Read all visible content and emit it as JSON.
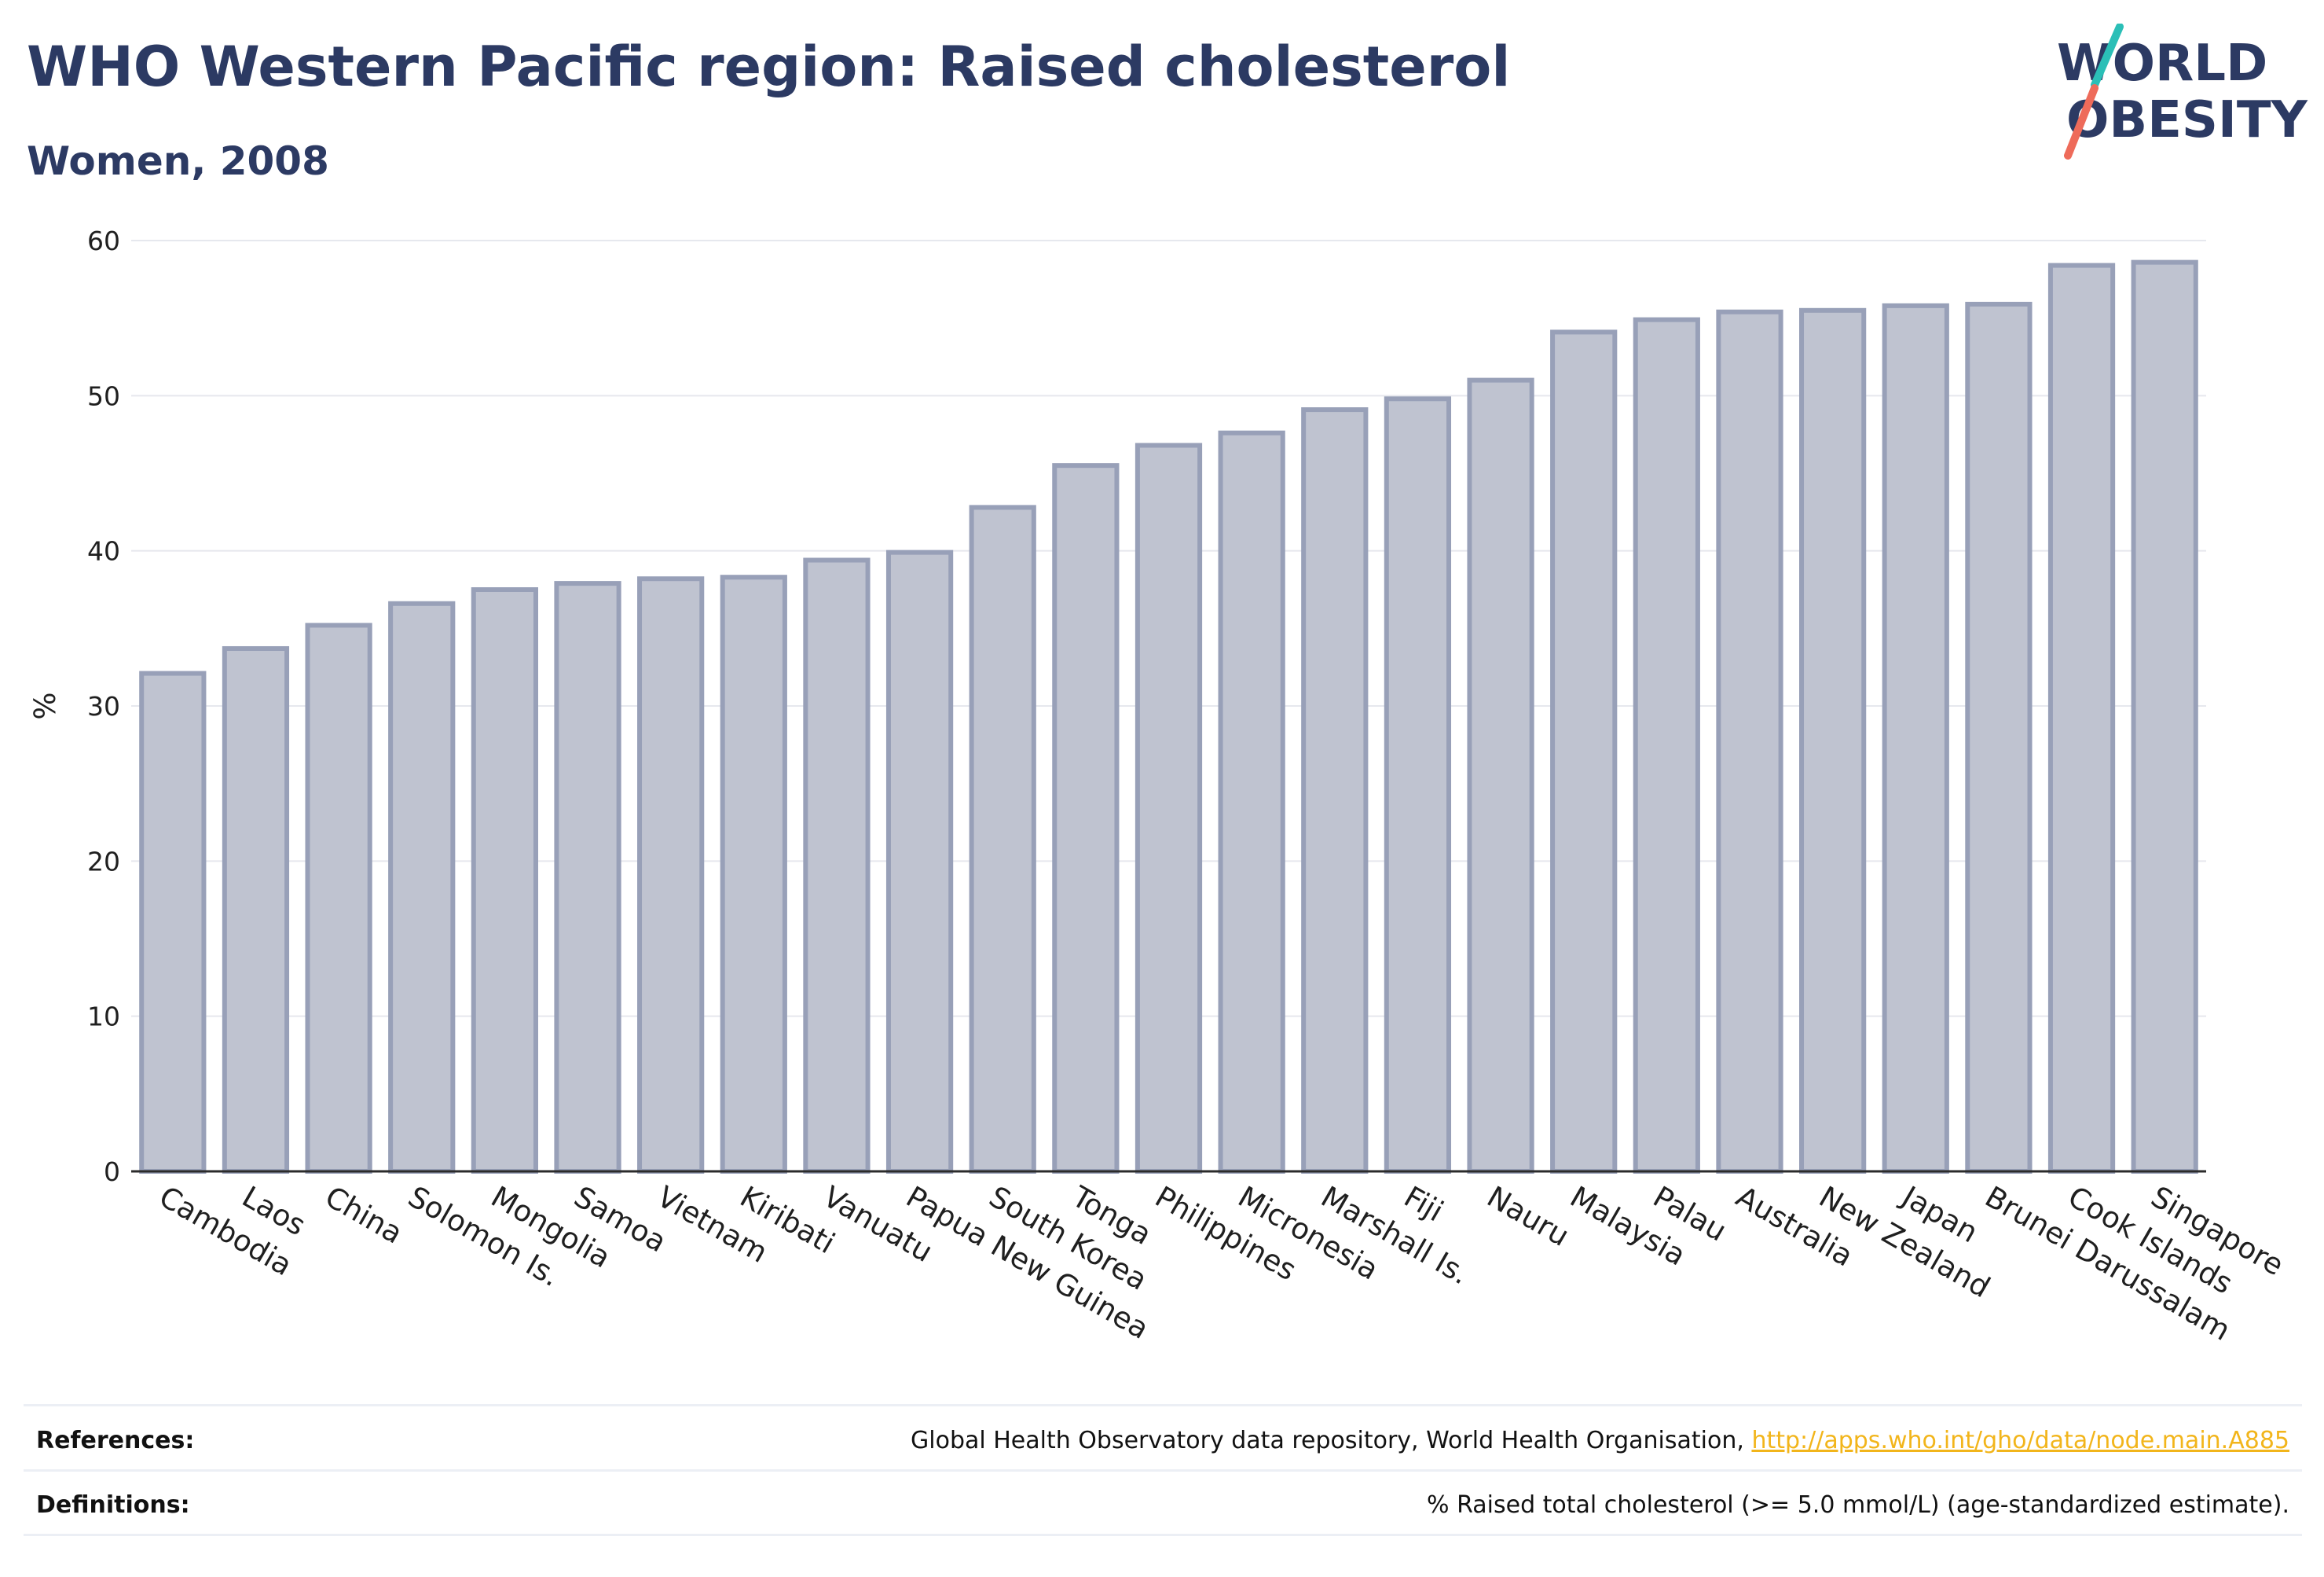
{
  "header": {
    "title": "WHO Western Pacific region: Raised cholesterol",
    "subtitle": "Women, 2008"
  },
  "logo": {
    "line1": "WORLD",
    "line2": "OBESITY"
  },
  "colors": {
    "title": "#2c3a63",
    "bar_fill": "#bfc3d0",
    "bar_stroke": "#98a0b8",
    "grid": "#e6e8ee",
    "logo_teal": "#2bbfb7",
    "logo_coral": "#ee6b5a",
    "link": "#f2b51b"
  },
  "chart_data": {
    "type": "bar",
    "title": "WHO Western Pacific region: Raised cholesterol",
    "subtitle": "Women, 2008",
    "xlabel": "",
    "ylabel": "%",
    "ylim": [
      0,
      60
    ],
    "yticks": [
      0,
      10,
      20,
      30,
      40,
      50,
      60
    ],
    "grid": true,
    "categories": [
      "Cambodia",
      "Laos",
      "China",
      "Solomon Is.",
      "Mongolia",
      "Samoa",
      "Vietnam",
      "Kiribati",
      "Vanuatu",
      "Papua New Guinea",
      "South Korea",
      "Tonga",
      "Philippines",
      "Micronesia",
      "Marshall Is.",
      "Fiji",
      "Nauru",
      "Malaysia",
      "Palau",
      "Australia",
      "New Zealand",
      "Japan",
      "Brunei Darussalam",
      "Cook Islands",
      "Singapore"
    ],
    "values": [
      32.1,
      33.7,
      35.2,
      36.6,
      37.5,
      37.9,
      38.2,
      38.3,
      39.4,
      39.9,
      42.8,
      45.5,
      46.8,
      47.6,
      49.1,
      49.8,
      51.0,
      54.1,
      54.9,
      55.4,
      55.5,
      55.8,
      55.9,
      58.4,
      58.6
    ]
  },
  "footer": {
    "references_label": "References:",
    "references_text": "Global Health Observatory data repository, World Health Organisation, ",
    "references_link": "http://apps.who.int/gho/data/node.main.A885",
    "definitions_label": "Definitions:",
    "definitions_text": "% Raised total cholesterol (>= 5.0 mmol/L) (age-standardized estimate)."
  }
}
